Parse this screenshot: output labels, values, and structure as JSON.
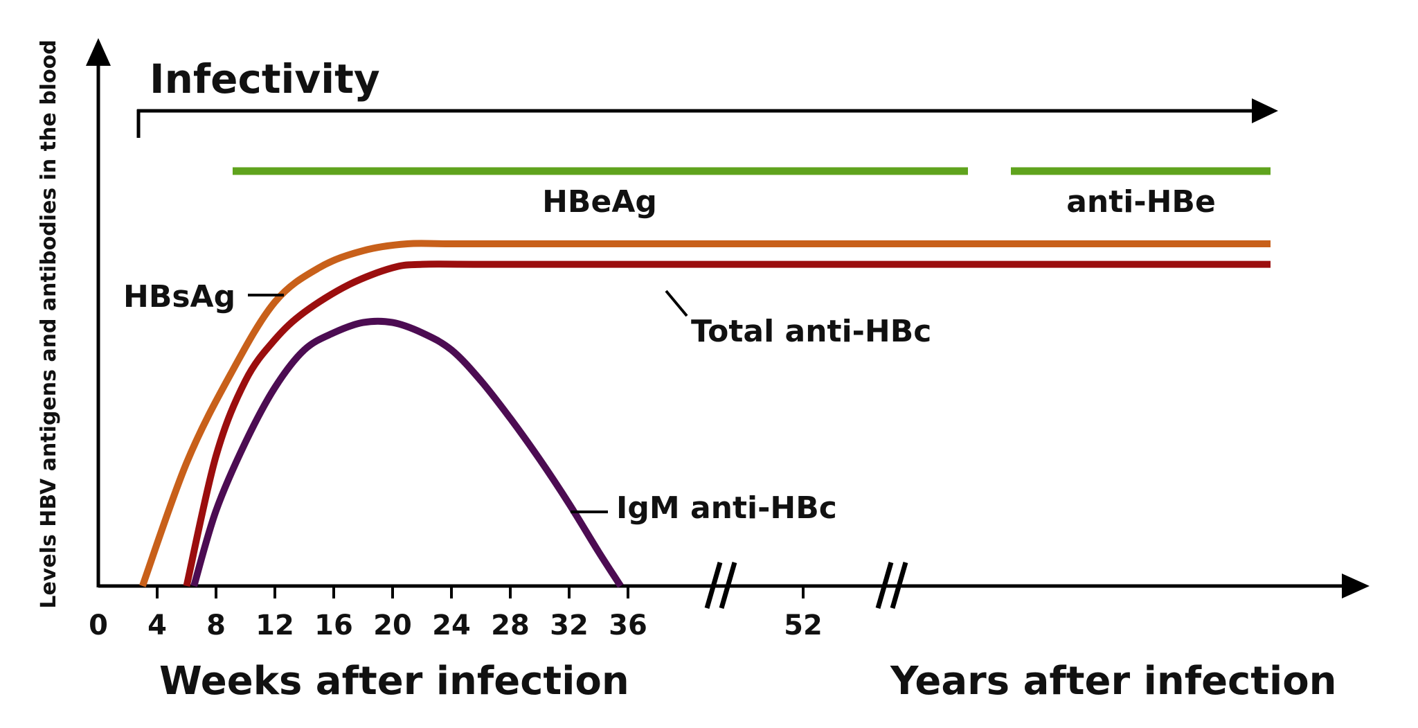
{
  "chart_data": {
    "type": "line",
    "title": "",
    "ylabel": "Levels HBV antigens and antibodies in the blood",
    "xlabel_weeks": "Weeks after infection",
    "xlabel_years": "Years after infection",
    "x_ticks": [
      "0",
      "4",
      "8",
      "12",
      "16",
      "20",
      "24",
      "28",
      "32",
      "36",
      "52"
    ],
    "x_tick_values": [
      0,
      4,
      8,
      12,
      16,
      20,
      24,
      28,
      32,
      36,
      52
    ],
    "xlim_weeks": [
      0,
      36
    ],
    "axis_breaks": 2,
    "infectivity": {
      "label": "Infectivity",
      "start_week": 3
    },
    "bars": [
      {
        "name": "HBeAg",
        "start_week": 9,
        "continues_to": "break",
        "color": "#5fa31d"
      },
      {
        "name": "anti-HBe",
        "start": "after break",
        "continues_to": "end",
        "color": "#5fa31d"
      }
    ],
    "series": [
      {
        "name": "HBsAg",
        "color": "#c8601a",
        "x": [
          3,
          6,
          9,
          12,
          15,
          18,
          21,
          24,
          30,
          36
        ],
        "y": [
          0,
          0.36,
          0.62,
          0.83,
          0.93,
          0.98,
          1.0,
          1.0,
          1.0,
          1.0
        ],
        "continues_to_end": true
      },
      {
        "name": "Total anti-HBc",
        "color": "#9b0e0e",
        "x": [
          6,
          8,
          10,
          12,
          14,
          17,
          20,
          22,
          26,
          36
        ],
        "y": [
          0,
          0.38,
          0.6,
          0.72,
          0.8,
          0.88,
          0.93,
          0.94,
          0.94,
          0.94
        ],
        "continues_to_end": true
      },
      {
        "name": "IgM anti-HBc",
        "color": "#4c0c52",
        "x": [
          6.5,
          8,
          10,
          12,
          14,
          16,
          18,
          20,
          22,
          24,
          26,
          28,
          30,
          32,
          34,
          35.5
        ],
        "y": [
          0,
          0.22,
          0.42,
          0.58,
          0.69,
          0.74,
          0.77,
          0.77,
          0.74,
          0.69,
          0.6,
          0.49,
          0.37,
          0.24,
          0.1,
          0
        ],
        "continues_to_end": false
      }
    ]
  }
}
